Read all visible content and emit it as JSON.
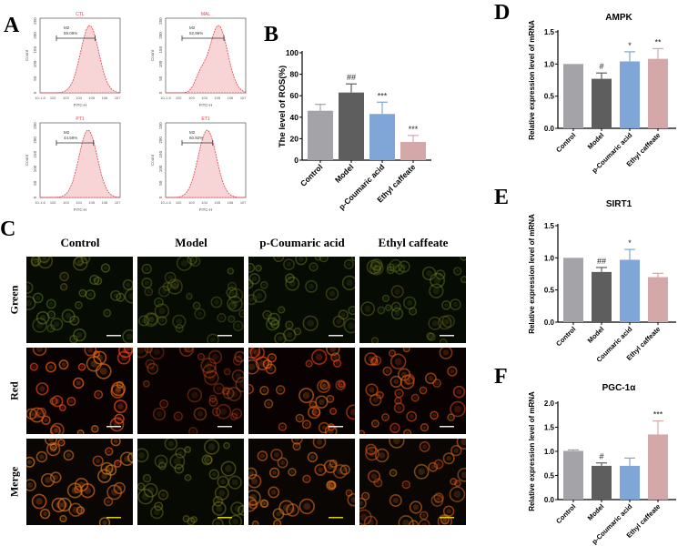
{
  "panels": {
    "A": "A",
    "B": "B",
    "C": "C",
    "D": "D",
    "E": "E",
    "F": "F"
  },
  "flow": {
    "xlabel": "FITC-H",
    "ylabel": "Count",
    "gate": "M2",
    "yticks": [
      "0",
      "50",
      "100",
      "150",
      "200",
      "250"
    ],
    "xticks": [
      "10^-1.6",
      "10^2",
      "10^3",
      "10^4",
      "10^5",
      "10^6",
      "10^7"
    ],
    "plots": [
      {
        "title": "CTL",
        "percent": "59.09%",
        "peak": 0.62
      },
      {
        "title": "MAL",
        "percent": "52.96%",
        "peak": 0.66
      },
      {
        "title": "PT1",
        "percent": "44.59%",
        "peak": 0.6
      },
      {
        "title": "ET1",
        "percent": "60.92%",
        "peak": 0.52
      }
    ]
  },
  "microscopy": {
    "columns": [
      "Control",
      "Model",
      "p-Coumaric acid",
      "Ethyl caffeate"
    ],
    "rows": [
      "Green",
      "Red",
      "Merge"
    ]
  },
  "colors": {
    "control": "#a3a3a8",
    "model": "#5e5e5e",
    "pcoumaric": "#7fa6d6",
    "ethyl": "#d4a7a9",
    "flow_line": "#e0404a",
    "flow_fill": "#f7d4d6"
  },
  "chart_data": [
    {
      "id": "B",
      "type": "bar",
      "title": "",
      "ylabel": "The level of ROS(%)",
      "xlabel": "",
      "categories": [
        "Control",
        "Model",
        "p-Coumaric acid",
        "Ethyl caffeate"
      ],
      "values": [
        46,
        63,
        43,
        17
      ],
      "errors": [
        6,
        8,
        11,
        6
      ],
      "annotations": [
        "",
        "##",
        "***",
        "***"
      ],
      "ylim": [
        0,
        100
      ],
      "yticks": [
        "0",
        "20",
        "40",
        "60",
        "80",
        "100"
      ],
      "grid": false,
      "legend": "none"
    },
    {
      "id": "D",
      "type": "bar",
      "title": "AMPK",
      "ylabel": "Relative expression level of mRNA",
      "xlabel": "",
      "categories": [
        "Control",
        "Model",
        "p-Coumaric acid",
        "Ethyl caffeate"
      ],
      "values": [
        1.0,
        0.77,
        1.04,
        1.08
      ],
      "errors": [
        0.005,
        0.09,
        0.15,
        0.16
      ],
      "annotations": [
        "",
        "#",
        "*",
        "**"
      ],
      "ylim": [
        0,
        1.5
      ],
      "yticks": [
        "0.0",
        "0.5",
        "1.0",
        "1.5"
      ],
      "grid": false,
      "legend": "none"
    },
    {
      "id": "E",
      "type": "bar",
      "title": "SIRT1",
      "ylabel": "Relative expression level of mRNA",
      "xlabel": "",
      "categories": [
        "Control",
        "Model",
        "p-Coumaric acid",
        "Ethyl caffeate"
      ],
      "values": [
        1.0,
        0.78,
        0.97,
        0.7
      ],
      "errors": [
        0.0,
        0.07,
        0.16,
        0.06
      ],
      "annotations": [
        "",
        "##",
        "*",
        ""
      ],
      "ylim": [
        0,
        1.5
      ],
      "yticks": [
        "0.0",
        "0.5",
        "1.0",
        "1.5"
      ],
      "grid": false,
      "legend": "none"
    },
    {
      "id": "F",
      "type": "bar",
      "title": "PGC-1α",
      "ylabel": "Relative expression level of mRNA",
      "xlabel": "",
      "categories": [
        "Control",
        "Model",
        "p-Coumaric acid",
        "Ethyl caffeate"
      ],
      "values": [
        1.01,
        0.7,
        0.7,
        1.35
      ],
      "errors": [
        0.02,
        0.06,
        0.16,
        0.28
      ],
      "annotations": [
        "",
        "#",
        "",
        "***"
      ],
      "ylim": [
        0,
        2.0
      ],
      "yticks": [
        "0.0",
        "0.5",
        "1.0",
        "1.5",
        "2.0"
      ],
      "grid": false,
      "legend": "none"
    }
  ]
}
